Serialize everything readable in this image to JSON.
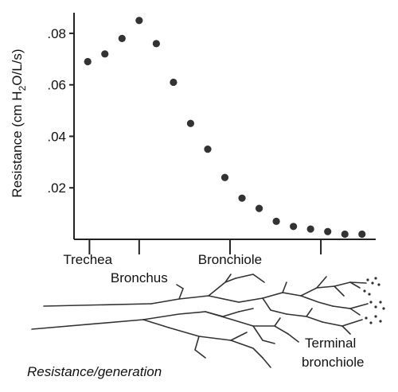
{
  "chart_data": {
    "type": "scatter",
    "ylabel": "Resistance (cm H₂O/L/s)",
    "ylabel_parts": {
      "before": "Resistance (cm H",
      "sub": "2",
      "after": "O/L/s)"
    },
    "yticks": [
      ".02",
      ".04",
      ".06",
      ".08"
    ],
    "ytick_values": [
      0.02,
      0.04,
      0.06,
      0.08
    ],
    "ylim": [
      0,
      0.088
    ],
    "x_generations": [
      1,
      2,
      3,
      4,
      5,
      6,
      7,
      8,
      9,
      10,
      11,
      12,
      13,
      14,
      15,
      16,
      17
    ],
    "xlim": [
      0.2,
      17.8
    ],
    "values": [
      0.069,
      0.072,
      0.078,
      0.085,
      0.076,
      0.061,
      0.045,
      0.035,
      0.024,
      0.016,
      0.012,
      0.007,
      0.005,
      0.004,
      0.003,
      0.002,
      0.002
    ],
    "x_tick_generations": [
      1.1,
      4.0,
      9.3,
      14.6
    ],
    "categories": [
      {
        "label": "Trechea",
        "generation": 1
      },
      {
        "label": "Bronchus",
        "generation": 4
      },
      {
        "label": "Bronchiole",
        "generation": 9.3
      }
    ],
    "grid": false,
    "legend": "none"
  },
  "diagram": {
    "terminal_label_line1": "Terminal",
    "terminal_label_line2": "bronchiole",
    "caption": "Resistance/generation"
  }
}
